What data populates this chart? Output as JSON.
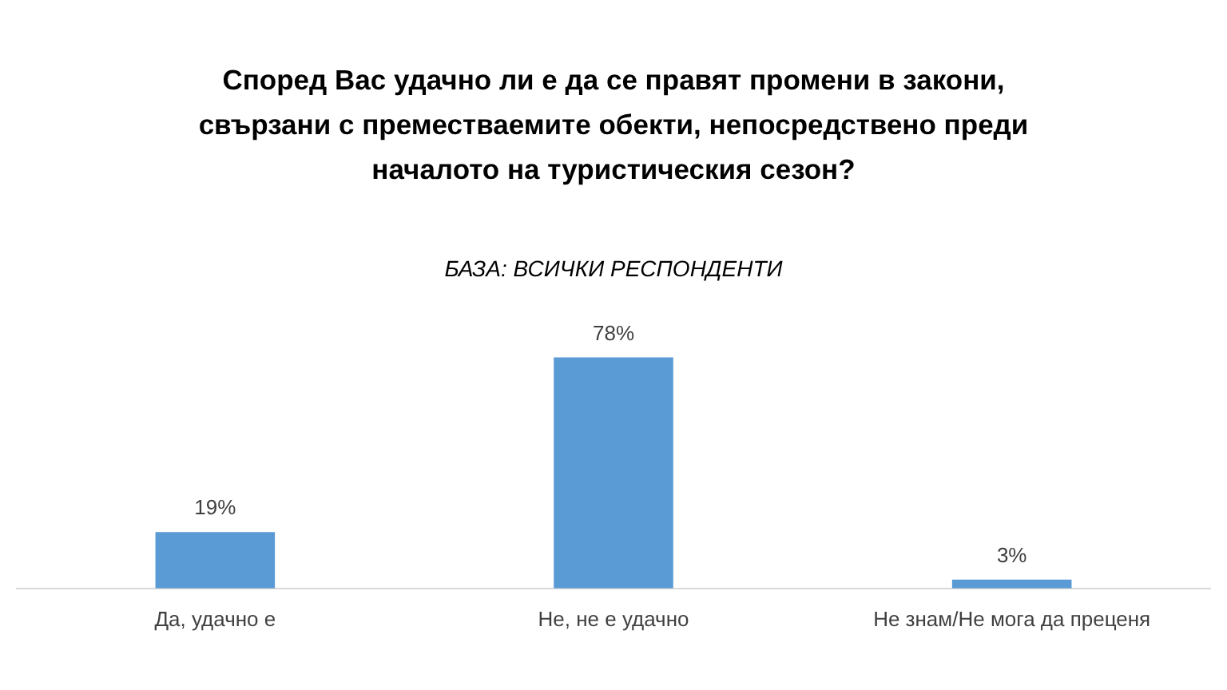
{
  "chart_data": {
    "type": "bar",
    "title": "Според Вас удачно ли е да се правят промени в закони, свързани с преместваемите обекти, непосредствено преди началото на туристическия сезон?",
    "subtitle": "БАЗА: ВСИЧКИ РЕСПОНДЕНТИ",
    "categories": [
      "Да, удачно е",
      "Не, не е удачно",
      "Не знам/Не мога да преценя"
    ],
    "values": [
      19,
      78,
      3
    ],
    "value_labels": [
      "19%",
      "78%",
      "3%"
    ],
    "color": "#5b9bd5"
  }
}
